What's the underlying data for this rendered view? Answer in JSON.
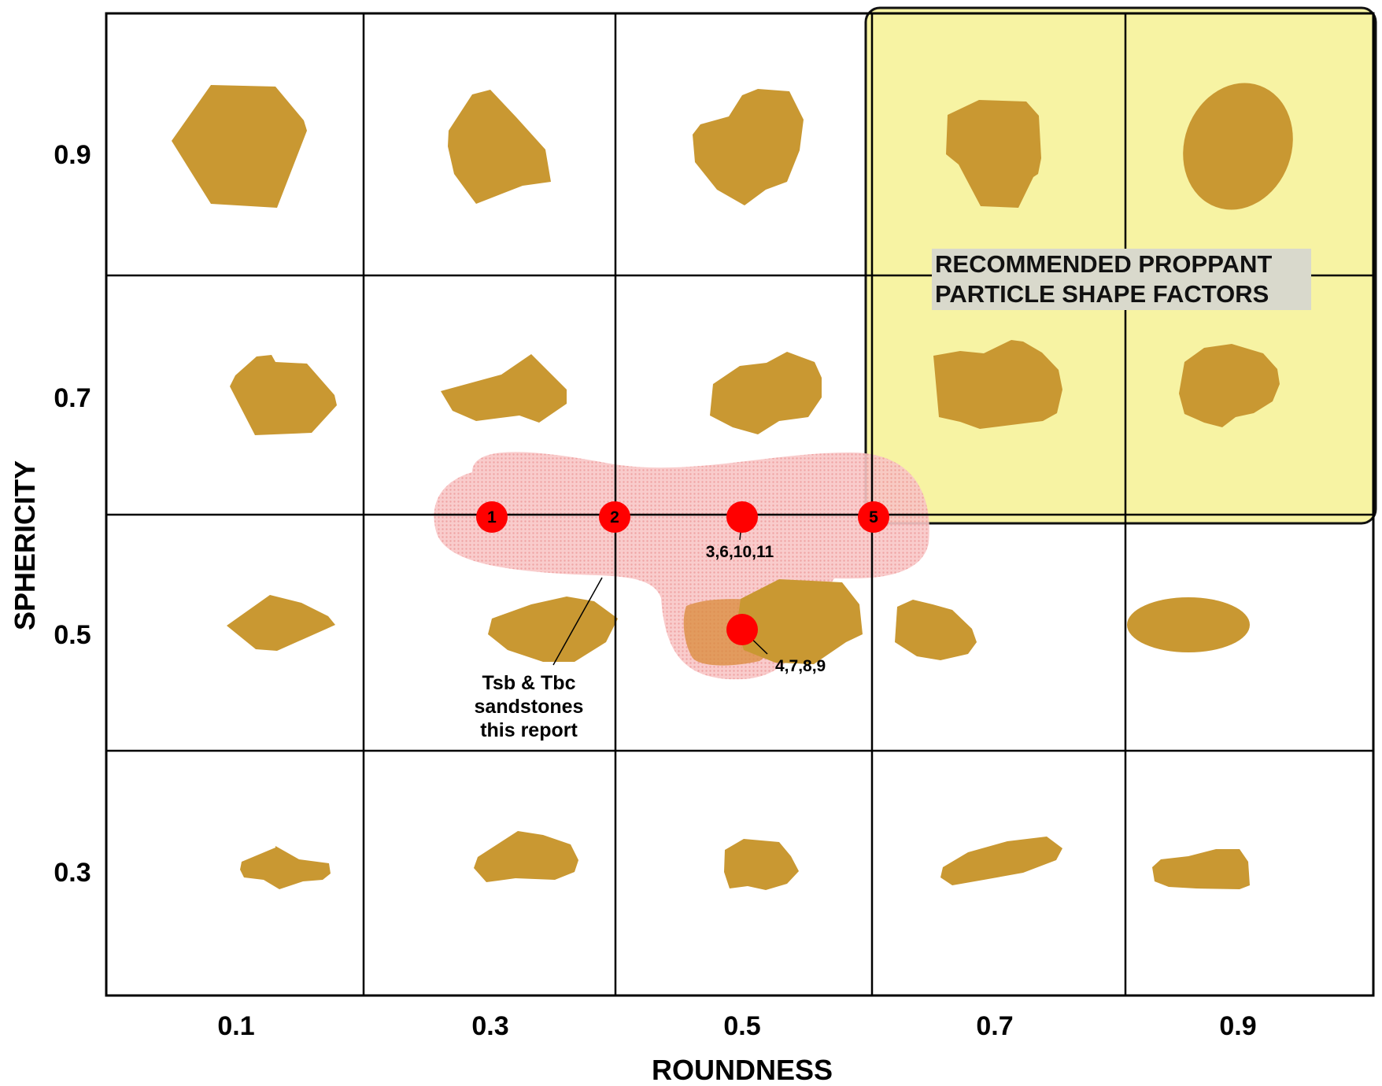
{
  "colors": {
    "grain": "#c99832",
    "recommended_fill": "#f7f3a3",
    "recommended_stroke": "#111111",
    "study_region": "#f5aaaa",
    "point": "#ff0000",
    "grid": "#000000"
  },
  "chart_data": {
    "type": "scatter",
    "title": "",
    "xlabel": "ROUNDNESS",
    "ylabel": "SPHERICITY",
    "x_ticks": [
      "0.1",
      "0.3",
      "0.5",
      "0.7",
      "0.9"
    ],
    "y_ticks": [
      "0.9",
      "0.7",
      "0.5",
      "0.3"
    ],
    "grid": true,
    "recommended_region": {
      "label_lines": [
        "RECOMMENDED PROPPANT",
        "PARTICLE SHAPE FACTORS"
      ],
      "roundness_range": [
        0.6,
        1.0
      ],
      "sphericity_range": [
        0.6,
        1.0
      ]
    },
    "study_region_label_lines": [
      "Tsb & Tbc",
      "sandstones",
      "this report"
    ],
    "points": [
      {
        "id": "1",
        "roundness": 0.3,
        "sphericity": 0.6,
        "samples": "1"
      },
      {
        "id": "2",
        "roundness": 0.4,
        "sphericity": 0.6,
        "samples": "2"
      },
      {
        "id": "",
        "roundness": 0.5,
        "sphericity": 0.6,
        "samples": "3,6,10,11"
      },
      {
        "id": "5",
        "roundness": 0.6,
        "sphericity": 0.6,
        "samples": "5"
      },
      {
        "id": "",
        "roundness": 0.5,
        "sphericity": 0.5,
        "samples": "4,7,8,9"
      }
    ],
    "grain_images": {
      "roundness": [
        0.1,
        0.3,
        0.5,
        0.7,
        0.9
      ],
      "sphericity": [
        0.9,
        0.7,
        0.5,
        0.3
      ]
    }
  }
}
